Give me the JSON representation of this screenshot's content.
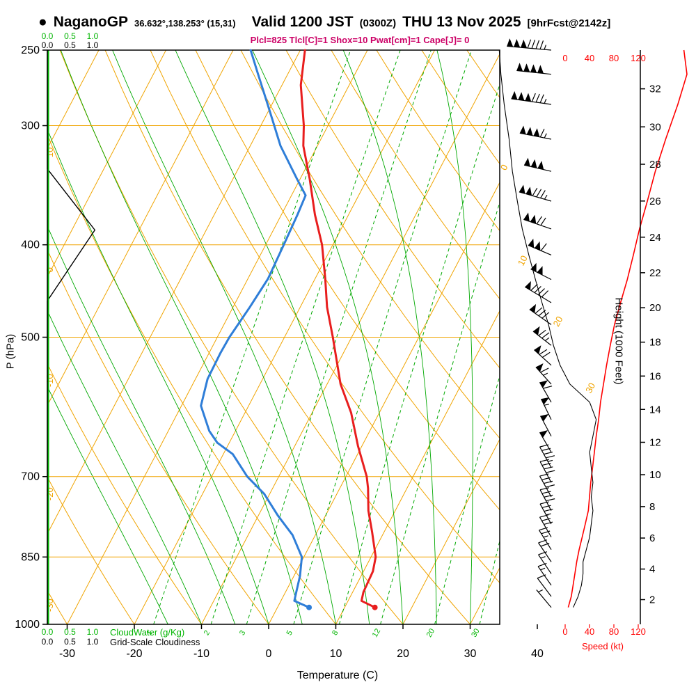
{
  "header": {
    "bullet": "●",
    "station": "NaganoGP",
    "coords": "36.632°,138.253° (15,31)",
    "valid": "Valid 1200 JST",
    "valid_utc": "(0300Z)",
    "valid_date": "THU 13 Nov 2025",
    "forecast": "[9hrFcst@2142z]",
    "params": "Plcl=825 Tlcl[C]=1 Shox=10 Pwat[cm]=1 Cape[J]= 0"
  },
  "colors": {
    "grid": "#f0a400",
    "moist": "#00a800",
    "green_text": "#00b400",
    "temp": "#e81e1e",
    "dew": "#2f7ed8",
    "speed": "#ff0000",
    "params": "#cc0066",
    "black": "#000000"
  },
  "axes": {
    "pressure": {
      "label": "P (hPa)",
      "ticks": [
        250,
        300,
        400,
        500,
        700,
        850,
        1000
      ]
    },
    "temperature": {
      "label": "Temperature (C)",
      "ticks": [
        -30,
        -20,
        -10,
        0,
        10,
        20,
        30,
        40
      ]
    },
    "height": {
      "label": "Height (1000 Feet)",
      "ticks": [
        2,
        4,
        6,
        8,
        10,
        12,
        14,
        16,
        18,
        20,
        22,
        24,
        26,
        28,
        30,
        32
      ]
    },
    "speed": {
      "label": "Speed (kt)",
      "ticks": [
        0,
        40,
        80,
        120
      ]
    },
    "cloudwater": {
      "label": "CloudWater (g/Kg)",
      "ticks": [
        "0.0",
        "0.5",
        "1.0"
      ]
    },
    "cloudiness": {
      "label": "Grid-Scale Cloudiness",
      "ticks": [
        "0.0",
        "0.5",
        "1.0"
      ]
    }
  },
  "chart_data": {
    "type": "skewt-log-p",
    "pressure_range": [
      250,
      1000
    ],
    "pressure_lines": [
      300,
      400,
      500,
      700,
      850
    ],
    "isotherm_range": [
      -120,
      40
    ],
    "isotherm_step": 10,
    "dry_adiabat_range": [
      -30,
      210
    ],
    "dry_adiabat_step": 10,
    "dry_adiabat_labels": [
      10,
      0,
      -10,
      -20,
      -30
    ],
    "isotherm_labels": [
      {
        "t": 0,
        "p": 333
      },
      {
        "t": 10,
        "p": 417
      },
      {
        "t": 20,
        "p": 483
      },
      {
        "t": 30,
        "p": 567
      }
    ],
    "moist_adiabat_starts": [
      -15,
      -10,
      -5,
      0,
      5,
      10,
      15,
      20,
      25,
      30,
      35,
      40
    ],
    "mixing_ratio_values": [
      1,
      2,
      3,
      5,
      8,
      12,
      20,
      30
    ],
    "temperature_profile": [
      [
        960,
        14.5
      ],
      [
        945,
        12.0
      ],
      [
        925,
        11.6
      ],
      [
        880,
        11.4
      ],
      [
        850,
        10.7
      ],
      [
        800,
        8.2
      ],
      [
        760,
        6.0
      ],
      [
        720,
        4.2
      ],
      [
        700,
        3.1
      ],
      [
        650,
        -0.6
      ],
      [
        600,
        -4.2
      ],
      [
        560,
        -8.0
      ],
      [
        500,
        -12.8
      ],
      [
        465,
        -16.0
      ],
      [
        434,
        -18.5
      ],
      [
        400,
        -21.6
      ],
      [
        372,
        -25.0
      ],
      [
        341,
        -28.6
      ],
      [
        315,
        -32.1
      ],
      [
        300,
        -33.6
      ],
      [
        272,
        -37.2
      ],
      [
        250,
        -39.3
      ]
    ],
    "dewpoint_profile": [
      [
        960,
        4.7
      ],
      [
        945,
        2.0
      ],
      [
        925,
        1.6
      ],
      [
        890,
        0.9
      ],
      [
        850,
        -0.3
      ],
      [
        806,
        -3.4
      ],
      [
        769,
        -7.1
      ],
      [
        730,
        -10.8
      ],
      [
        700,
        -14.7
      ],
      [
        663,
        -18.6
      ],
      [
        645,
        -21.8
      ],
      [
        627,
        -23.9
      ],
      [
        590,
        -27.1
      ],
      [
        553,
        -28.2
      ],
      [
        520,
        -28.3
      ],
      [
        500,
        -28.2
      ],
      [
        465,
        -27.5
      ],
      [
        434,
        -27.0
      ],
      [
        400,
        -27.3
      ],
      [
        372,
        -27.6
      ],
      [
        355,
        -27.9
      ],
      [
        341,
        -30.5
      ],
      [
        315,
        -35.5
      ],
      [
        288,
        -40.1
      ],
      [
        264,
        -44.6
      ],
      [
        250,
        -47.4
      ]
    ],
    "wind_profile": [
      [
        960,
        320,
        5
      ],
      [
        935,
        323,
        10
      ],
      [
        910,
        325,
        13
      ],
      [
        885,
        326,
        16
      ],
      [
        860,
        326,
        19
      ],
      [
        835,
        328,
        23
      ],
      [
        810,
        330,
        28
      ],
      [
        785,
        331,
        33
      ],
      [
        760,
        332,
        38
      ],
      [
        735,
        331,
        40
      ],
      [
        710,
        332,
        42
      ],
      [
        685,
        331,
        45
      ],
      [
        660,
        330,
        48
      ],
      [
        635,
        332,
        51
      ],
      [
        610,
        334,
        55
      ],
      [
        585,
        330,
        58
      ],
      [
        560,
        318,
        63
      ],
      [
        535,
        312,
        68
      ],
      [
        510,
        308,
        74
      ],
      [
        485,
        305,
        81
      ],
      [
        460,
        301,
        91
      ],
      [
        435,
        297,
        102
      ],
      [
        410,
        293,
        112
      ],
      [
        385,
        289,
        122
      ],
      [
        360,
        286,
        135
      ],
      [
        335,
        283,
        148
      ],
      [
        310,
        281,
        165
      ],
      [
        285,
        278,
        185
      ],
      [
        265,
        276,
        200
      ],
      [
        250,
        275,
        195
      ]
    ],
    "cloudiness_profile": [
      [
        250,
        0
      ],
      [
        333,
        0
      ],
      [
        386,
        1.05
      ],
      [
        458,
        0
      ],
      [
        1000,
        0
      ]
    ],
    "cloudwater_profile": [
      [
        250,
        0
      ],
      [
        1000,
        0
      ]
    ]
  }
}
